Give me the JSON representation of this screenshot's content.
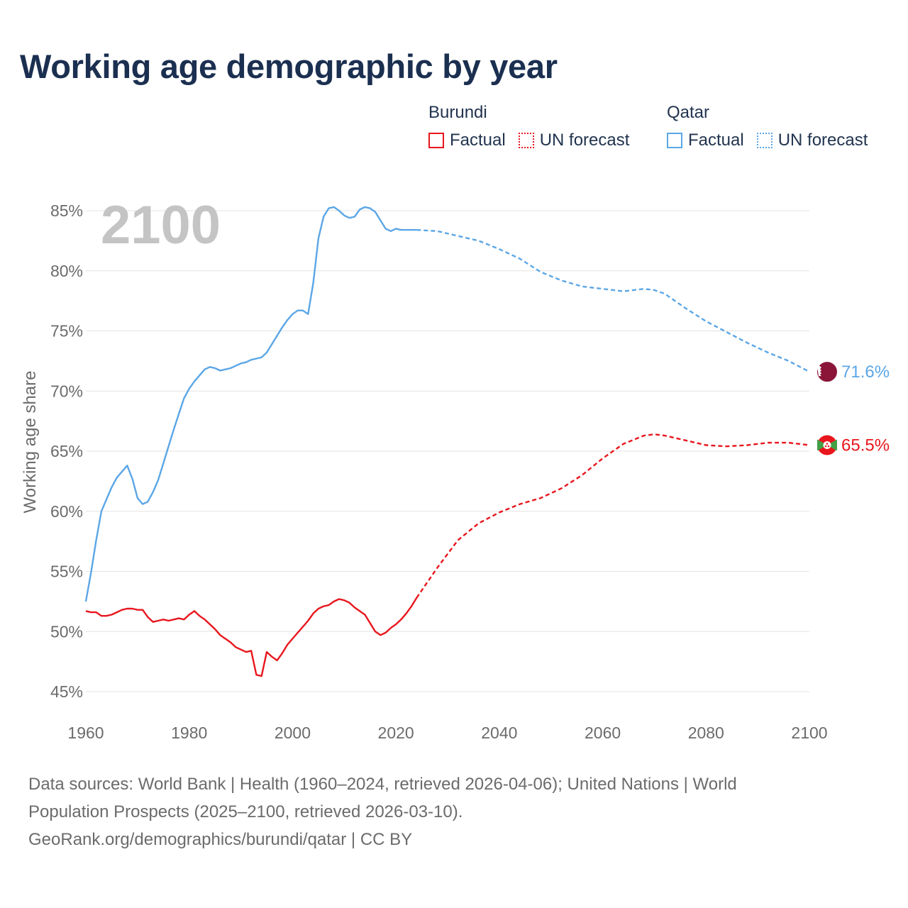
{
  "chart_data": {
    "type": "line",
    "title": "Working age demographic by year",
    "xlabel": "",
    "ylabel": "Working age share",
    "xlim": [
      1960,
      2100
    ],
    "ylim": [
      45,
      85
    ],
    "x_ticks": [
      "1960",
      "1980",
      "2000",
      "2020",
      "2040",
      "2060",
      "2080",
      "2100"
    ],
    "x_tick_values": [
      1960,
      1980,
      2000,
      2020,
      2040,
      2060,
      2080,
      2100
    ],
    "y_ticks": [
      "45%",
      "50%",
      "55%",
      "60%",
      "65%",
      "70%",
      "75%",
      "80%",
      "85%"
    ],
    "y_tick_values": [
      45,
      50,
      55,
      60,
      65,
      70,
      75,
      80,
      85
    ],
    "year_label": "2100",
    "colors": {
      "burundi": "#e8161d",
      "qatar": "#5ba6e6",
      "qatar_flag": "#8a1538",
      "burundi_flag_green": "#43a047",
      "burundi_flag_red": "#e8161d"
    },
    "series": [
      {
        "name": "Qatar",
        "color": "#5ba6e6",
        "end_label": "71.6%",
        "factual": {
          "x": [
            1960,
            1961,
            1962,
            1963,
            1964,
            1965,
            1966,
            1967,
            1968,
            1969,
            1970,
            1971,
            1972,
            1973,
            1974,
            1975,
            1976,
            1977,
            1978,
            1979,
            1980,
            1981,
            1982,
            1983,
            1984,
            1985,
            1986,
            1987,
            1988,
            1989,
            1990,
            1991,
            1992,
            1993,
            1994,
            1995,
            1996,
            1997,
            1998,
            1999,
            2000,
            2001,
            2002,
            2003,
            2004,
            2005,
            2006,
            2007,
            2008,
            2009,
            2010,
            2011,
            2012,
            2013,
            2014,
            2015,
            2016,
            2017,
            2018,
            2019,
            2020,
            2021,
            2022,
            2023,
            2024
          ],
          "y": [
            52.5,
            54.9,
            57.6,
            60.0,
            61.0,
            62.0,
            62.8,
            63.3,
            63.8,
            62.7,
            61.1,
            60.6,
            60.8,
            61.6,
            62.6,
            64.0,
            65.4,
            66.8,
            68.1,
            69.4,
            70.2,
            70.8,
            71.3,
            71.8,
            72.0,
            71.9,
            71.7,
            71.8,
            71.9,
            72.1,
            72.3,
            72.4,
            72.6,
            72.7,
            72.8,
            73.2,
            73.9,
            74.6,
            75.3,
            75.9,
            76.4,
            76.7,
            76.7,
            76.4,
            79.0,
            82.7,
            84.5,
            85.2,
            85.3,
            85.0,
            84.6,
            84.4,
            84.5,
            85.1,
            85.3,
            85.2,
            84.9,
            84.2,
            83.5,
            83.3,
            83.5,
            83.4,
            83.4,
            83.4,
            83.4
          ]
        },
        "forecast": {
          "x": [
            2024,
            2028,
            2032,
            2036,
            2040,
            2044,
            2048,
            2052,
            2056,
            2060,
            2064,
            2068,
            2070,
            2072,
            2076,
            2080,
            2084,
            2088,
            2092,
            2096,
            2100
          ],
          "y": [
            83.4,
            83.3,
            82.9,
            82.5,
            81.8,
            81.0,
            79.9,
            79.2,
            78.7,
            78.5,
            78.3,
            78.5,
            78.4,
            78.1,
            76.9,
            75.8,
            74.9,
            74.0,
            73.2,
            72.5,
            71.6
          ]
        }
      },
      {
        "name": "Burundi",
        "color": "#e8161d",
        "end_label": "65.5%",
        "factual": {
          "x": [
            1960,
            1961,
            1962,
            1963,
            1964,
            1965,
            1966,
            1967,
            1968,
            1969,
            1970,
            1971,
            1972,
            1973,
            1974,
            1975,
            1976,
            1977,
            1978,
            1979,
            1980,
            1981,
            1982,
            1983,
            1984,
            1985,
            1986,
            1987,
            1988,
            1989,
            1990,
            1991,
            1992,
            1993,
            1994,
            1995,
            1996,
            1997,
            1998,
            1999,
            2000,
            2001,
            2002,
            2003,
            2004,
            2005,
            2006,
            2007,
            2008,
            2009,
            2010,
            2011,
            2012,
            2013,
            2014,
            2015,
            2016,
            2017,
            2018,
            2019,
            2020,
            2021,
            2022,
            2023,
            2024
          ],
          "y": [
            51.7,
            51.6,
            51.6,
            51.3,
            51.3,
            51.4,
            51.6,
            51.8,
            51.9,
            51.9,
            51.8,
            51.8,
            51.2,
            50.8,
            50.9,
            51.0,
            50.9,
            51.0,
            51.1,
            51.0,
            51.4,
            51.7,
            51.3,
            51.0,
            50.6,
            50.2,
            49.7,
            49.4,
            49.1,
            48.7,
            48.5,
            48.3,
            48.4,
            46.4,
            46.3,
            48.3,
            47.9,
            47.6,
            48.2,
            48.9,
            49.4,
            49.9,
            50.4,
            50.9,
            51.5,
            51.9,
            52.1,
            52.2,
            52.5,
            52.7,
            52.6,
            52.4,
            52.0,
            51.7,
            51.4,
            50.7,
            50.0,
            49.7,
            49.9,
            50.3,
            50.6,
            51.0,
            51.5,
            52.1,
            52.8
          ]
        },
        "forecast": {
          "x": [
            2024,
            2028,
            2032,
            2036,
            2040,
            2044,
            2048,
            2052,
            2056,
            2060,
            2064,
            2068,
            2070,
            2072,
            2076,
            2080,
            2084,
            2088,
            2092,
            2096,
            2100
          ],
          "y": [
            52.8,
            55.3,
            57.6,
            59.0,
            59.9,
            60.6,
            61.1,
            61.9,
            63.0,
            64.4,
            65.6,
            66.3,
            66.4,
            66.3,
            65.9,
            65.5,
            65.4,
            65.5,
            65.7,
            65.7,
            65.5
          ]
        }
      }
    ]
  },
  "legend": {
    "groups": [
      {
        "name": "Burundi",
        "factual_label": "Factual",
        "forecast_label": "UN forecast",
        "color": "#e8161d"
      },
      {
        "name": "Qatar",
        "factual_label": "Factual",
        "forecast_label": "UN forecast",
        "color": "#5ba6e6"
      }
    ]
  },
  "footer": {
    "line1": "Data sources: World Bank | Health (1960–2024, retrieved 2026-04-06); United Nations | World",
    "line2": "Population Prospects (2025–2100, retrieved 2026-03-10).",
    "line3": "GeoRank.org/demographics/burundi/qatar | CC BY"
  }
}
